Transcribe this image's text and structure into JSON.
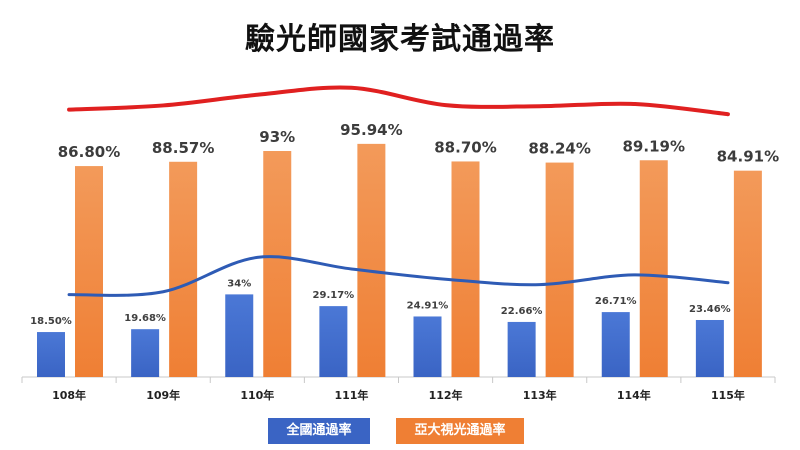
{
  "chart_data": {
    "type": "bar",
    "title": "驗光師國家考試通過率",
    "categories": [
      "108年",
      "109年",
      "110年",
      "111年",
      "112年",
      "113年",
      "114年",
      "115年"
    ],
    "series": [
      {
        "name": "全國通過率",
        "values": [
          18.5,
          19.68,
          34,
          29.17,
          24.91,
          22.66,
          26.71,
          23.46
        ],
        "labels": [
          "18.50%",
          "19.68%",
          "34%",
          "29.17%",
          "24.91%",
          "22.66%",
          "26.71%",
          "23.46%"
        ],
        "color": "#3a64c4",
        "line_color": "#2e5bb5"
      },
      {
        "name": "亞大視光通過率",
        "values": [
          86.8,
          88.57,
          93,
          95.94,
          88.7,
          88.24,
          89.19,
          84.91
        ],
        "labels": [
          "86.80%",
          "88.57%",
          "93%",
          "95.94%",
          "88.70%",
          "88.24%",
          "89.19%",
          "84.91%"
        ],
        "color": "#ef7f34",
        "line_color": "#e02020"
      }
    ],
    "ylim": [
      0,
      100
    ],
    "grid": false,
    "legend": "bottom-center"
  }
}
